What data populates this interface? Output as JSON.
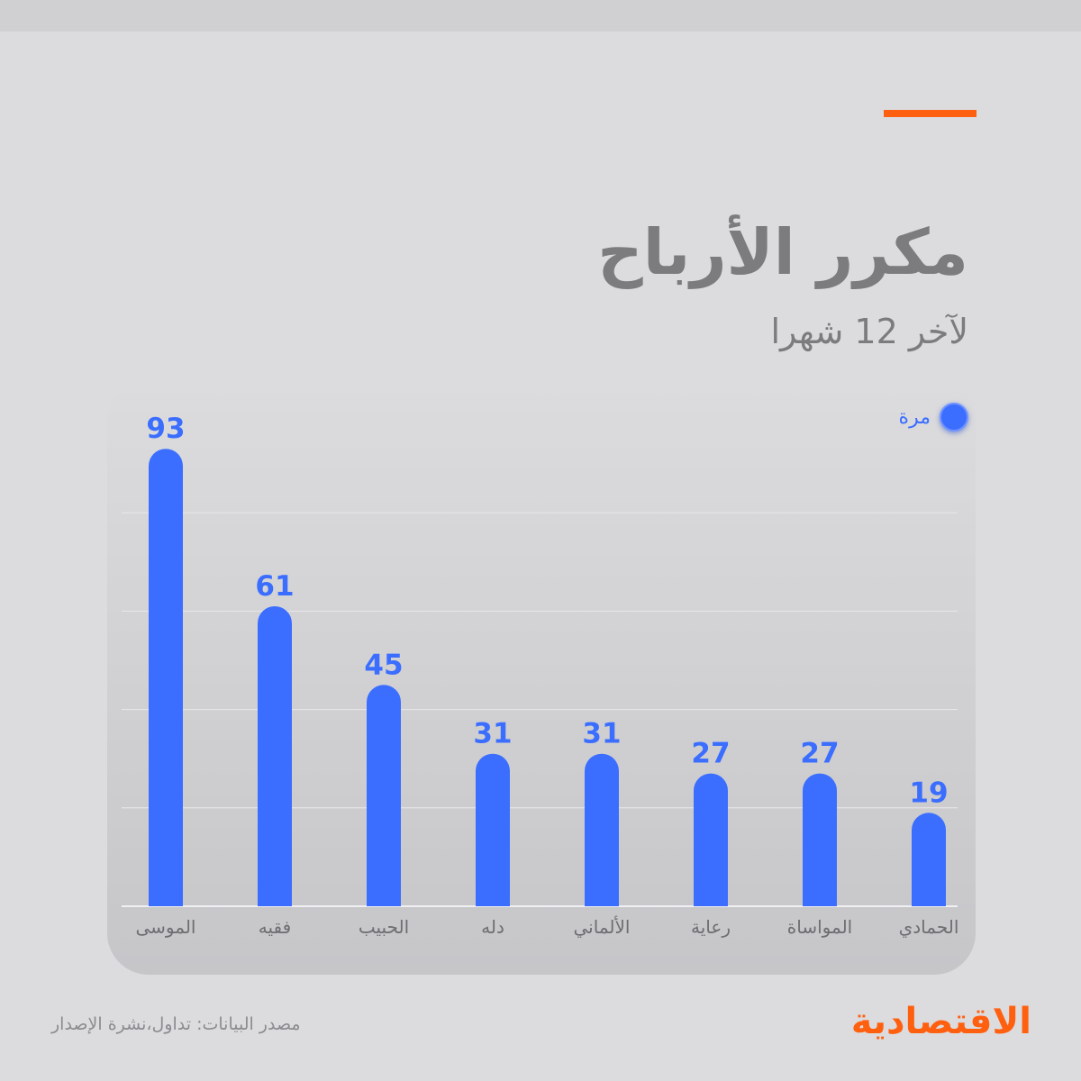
{
  "header": {
    "title": "مكرر الأرباح",
    "subtitle": "لآخر 12 شهرا"
  },
  "colors": {
    "accent": "#ff6010",
    "bar": "#3b6eff",
    "text_gray": "#7c7c7f"
  },
  "chart_data": {
    "type": "bar",
    "categories": [
      "الموسى",
      "فقيه",
      "الحبيب",
      "دله",
      "الألماني",
      "رعاية",
      "المواساة",
      "الحمادي"
    ],
    "series": [
      {
        "name": "مرة",
        "values": [
          93,
          61,
          45,
          31,
          31,
          27,
          27,
          19
        ]
      }
    ],
    "title": "مكرر الأرباح",
    "subtitle": "لآخر 12 شهرا",
    "xlabel": "",
    "ylabel": "",
    "ylim": [
      0,
      100
    ],
    "grid": true,
    "legend": "top-right"
  },
  "footer": {
    "source": "مصدر البيانات: تداول،نشرة الإصدار",
    "logo": "الاقتصادية"
  }
}
